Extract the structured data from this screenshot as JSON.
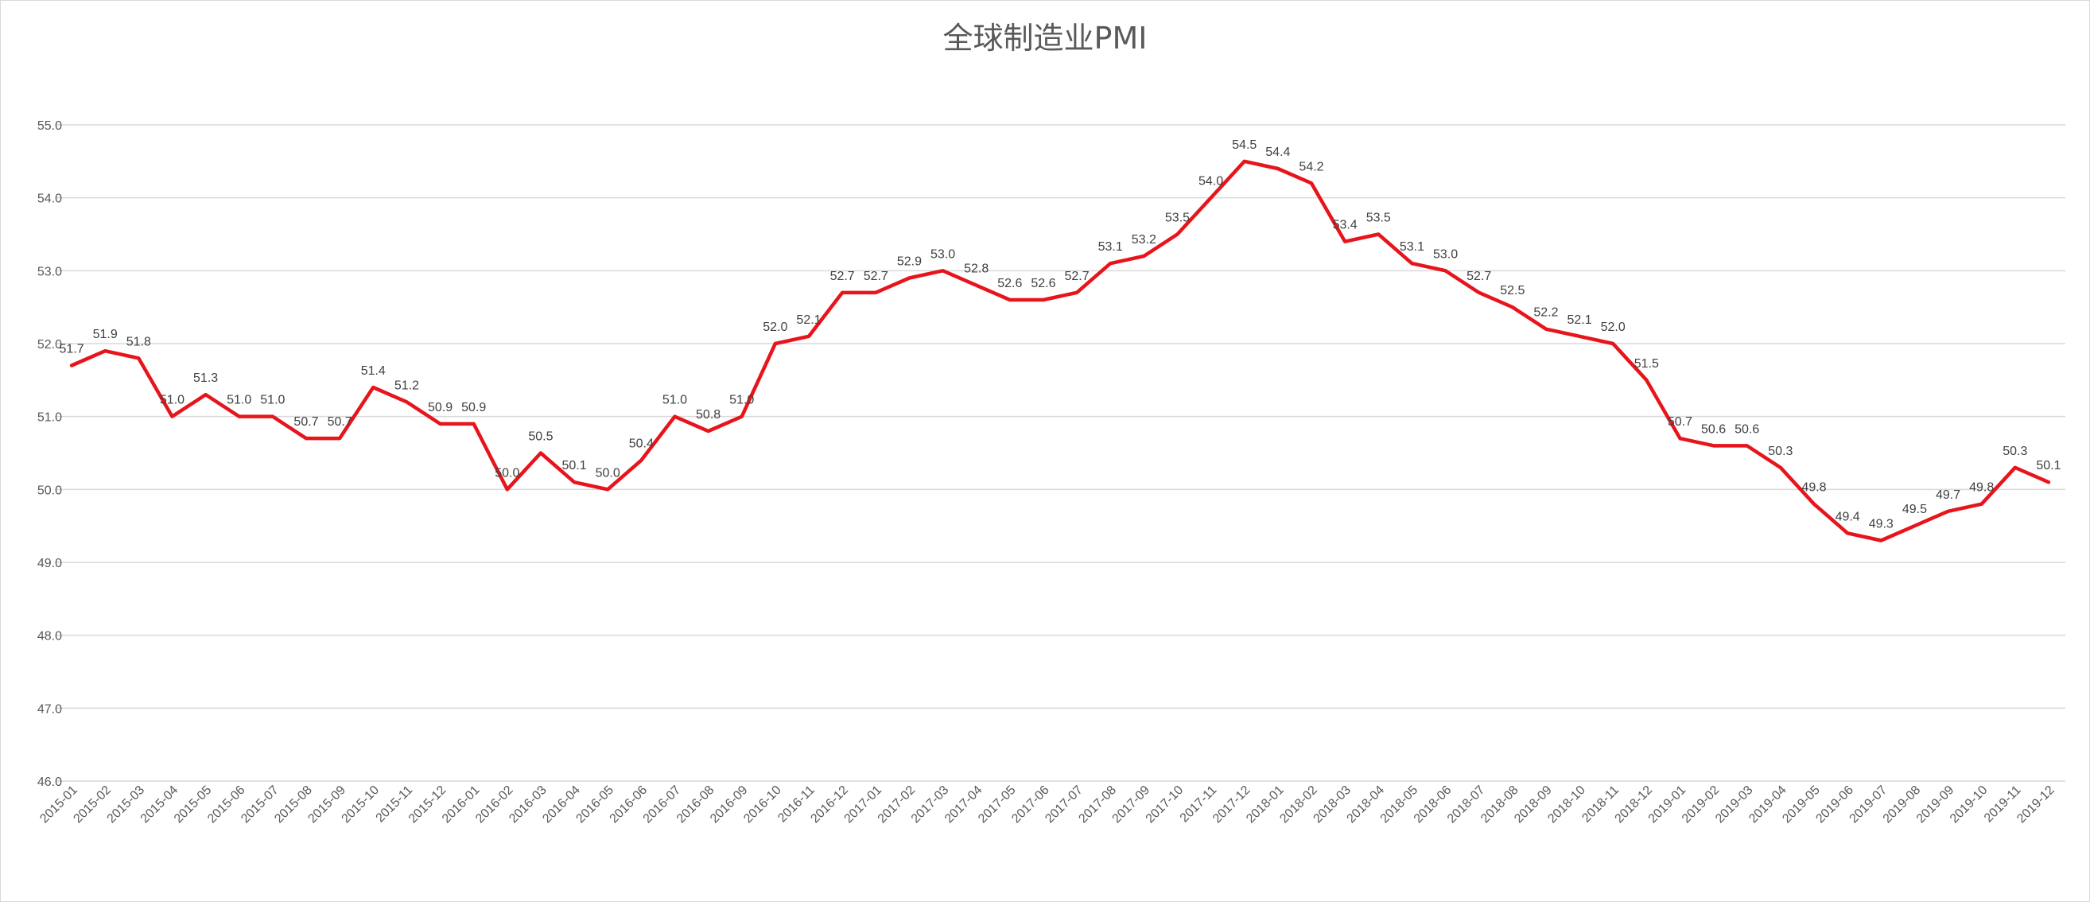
{
  "chart_data": {
    "type": "line",
    "title": "全球制造业PMI",
    "xlabel": "",
    "ylabel": "",
    "ylim": [
      46.0,
      55.0
    ],
    "y_ticks": [
      "46.0",
      "47.0",
      "48.0",
      "49.0",
      "50.0",
      "51.0",
      "52.0",
      "53.0",
      "54.0",
      "55.0"
    ],
    "grid": true,
    "line_color": "#e8141c",
    "categories": [
      "2015-01",
      "2015-02",
      "2015-03",
      "2015-04",
      "2015-05",
      "2015-06",
      "2015-07",
      "2015-08",
      "2015-09",
      "2015-10",
      "2015-11",
      "2015-12",
      "2016-01",
      "2016-02",
      "2016-03",
      "2016-04",
      "2016-05",
      "2016-06",
      "2016-07",
      "2016-08",
      "2016-09",
      "2016-10",
      "2016-11",
      "2016-12",
      "2017-01",
      "2017-02",
      "2017-03",
      "2017-04",
      "2017-05",
      "2017-06",
      "2017-07",
      "2017-08",
      "2017-09",
      "2017-10",
      "2017-11",
      "2017-12",
      "2018-01",
      "2018-02",
      "2018-03",
      "2018-04",
      "2018-05",
      "2018-06",
      "2018-07",
      "2018-08",
      "2018-09",
      "2018-10",
      "2018-11",
      "2018-12",
      "2019-01",
      "2019-02",
      "2019-03",
      "2019-04",
      "2019-05",
      "2019-06",
      "2019-07",
      "2019-08",
      "2019-09",
      "2019-10",
      "2019-11",
      "2019-12"
    ],
    "values": [
      51.7,
      51.9,
      51.8,
      51.0,
      51.3,
      51.0,
      51.0,
      50.7,
      50.7,
      51.4,
      51.2,
      50.9,
      50.9,
      50.0,
      50.5,
      50.1,
      50.0,
      50.4,
      51.0,
      50.8,
      51.0,
      52.0,
      52.1,
      52.7,
      52.7,
      52.9,
      53.0,
      52.8,
      52.6,
      52.6,
      52.7,
      53.1,
      53.2,
      53.5,
      54.0,
      54.5,
      54.4,
      54.2,
      53.4,
      53.5,
      53.1,
      53.0,
      52.7,
      52.5,
      52.2,
      52.1,
      52.0,
      51.5,
      50.7,
      50.6,
      50.6,
      50.3,
      49.8,
      49.4,
      49.3,
      49.5,
      49.7,
      49.8,
      50.3,
      50.1
    ]
  }
}
